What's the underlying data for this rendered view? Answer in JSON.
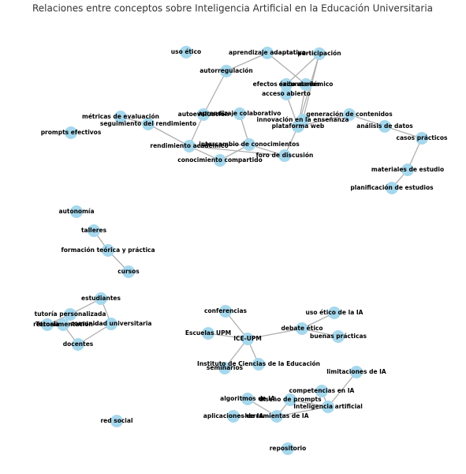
{
  "title": "Relaciones entre conceptos sobre Inteligencia Artificial en la Educación Universitaria",
  "nodes": [
    {
      "label": "uso ético"
    },
    {
      "label": "aprendizaje adaptativo"
    },
    {
      "label": "participación"
    },
    {
      "label": "autorregulación"
    },
    {
      "label": "efectos secundarios"
    },
    {
      "label": "éxito académico"
    },
    {
      "label": "acceso abierto"
    },
    {
      "label": "autoevaluación"
    },
    {
      "label": "aprendizaje colaborativo"
    },
    {
      "label": "innovación en la enseñanza"
    },
    {
      "label": "plataforma web"
    },
    {
      "label": "generación de contenidos"
    },
    {
      "label": "análisis de datos"
    },
    {
      "label": "casos prácticos"
    },
    {
      "label": "métricas de evaluación"
    },
    {
      "label": "seguimiento del rendimiento"
    },
    {
      "label": "prompts efectivos"
    },
    {
      "label": "rendimiento académico"
    },
    {
      "label": "intercambio de conocimientos"
    },
    {
      "label": "foro de discusión"
    },
    {
      "label": "conocimiento compartido"
    },
    {
      "label": "materiales de estudio"
    },
    {
      "label": "planificación de estudios"
    },
    {
      "label": "autonomía"
    },
    {
      "label": "talleres"
    },
    {
      "label": "formación teórica y práctica"
    },
    {
      "label": "cursos"
    },
    {
      "label": "estudiantes"
    },
    {
      "label": "tutoría personalizada"
    },
    {
      "label": "comunidad universitaria"
    },
    {
      "label": "retroalimentación"
    },
    {
      "label": "Tutoría"
    },
    {
      "label": "docentes"
    },
    {
      "label": "conferencias"
    },
    {
      "label": "uso ético de la IA"
    },
    {
      "label": "Escuelas UPM"
    },
    {
      "label": "ICE-UPM"
    },
    {
      "label": "debate ético"
    },
    {
      "label": "buenas prácticas"
    },
    {
      "label": "Instituto de Ciencias de la Educación"
    },
    {
      "label": "seminarios"
    },
    {
      "label": "limitaciones de IA"
    },
    {
      "label": "competencias en IA"
    },
    {
      "label": "algoritmos de IA"
    },
    {
      "label": "diseño de prompts"
    },
    {
      "label": "Inteligencia artificial"
    },
    {
      "label": "aplicaciones de IA"
    },
    {
      "label": "herramientas de IA"
    },
    {
      "label": "red social"
    },
    {
      "label": "repositorio"
    }
  ],
  "edges": [
    {
      "from": "aprendizaje adaptativo",
      "to": "autorregulación"
    },
    {
      "from": "aprendizaje adaptativo",
      "to": "participación"
    },
    {
      "from": "aprendizaje adaptativo",
      "to": "éxito académico"
    },
    {
      "from": "participación",
      "to": "efectos secundarios"
    },
    {
      "from": "participación",
      "to": "innovación en la enseñanza"
    },
    {
      "from": "participación",
      "to": "plataforma web"
    },
    {
      "from": "efectos secundarios",
      "to": "acceso abierto"
    },
    {
      "from": "acceso abierto",
      "to": "plataforma web"
    },
    {
      "from": "éxito académico",
      "to": "plataforma web"
    },
    {
      "from": "autorregulación",
      "to": "autoevaluación"
    },
    {
      "from": "autoevaluación",
      "to": "rendimiento académico"
    },
    {
      "from": "autoevaluación",
      "to": "aprendizaje colaborativo"
    },
    {
      "from": "aprendizaje colaborativo",
      "to": "intercambio de conocimientos"
    },
    {
      "from": "intercambio de conocimientos",
      "to": "rendimiento académico"
    },
    {
      "from": "intercambio de conocimientos",
      "to": "foro de discusión"
    },
    {
      "from": "conocimiento compartido",
      "to": "rendimiento académico"
    },
    {
      "from": "conocimiento compartido",
      "to": "intercambio de conocimientos"
    },
    {
      "from": "rendimiento académico",
      "to": "seguimiento del rendimiento"
    },
    {
      "from": "seguimiento del rendimiento",
      "to": "métricas de evaluación"
    },
    {
      "from": "rendimiento académico",
      "to": "foro de discusión"
    },
    {
      "from": "foro de discusión",
      "to": "plataforma web"
    },
    {
      "from": "plataforma web",
      "to": "generación de contenidos"
    },
    {
      "from": "generación de contenidos",
      "to": "análisis de datos"
    },
    {
      "from": "análisis de datos",
      "to": "casos prácticos"
    },
    {
      "from": "casos prácticos",
      "to": "materiales de estudio"
    },
    {
      "from": "materiales de estudio",
      "to": "planificación de estudios"
    },
    {
      "from": "talleres",
      "to": "formación teórica y práctica"
    },
    {
      "from": "formación teórica y práctica",
      "to": "cursos"
    },
    {
      "from": "estudiantes",
      "to": "tutoría personalizada"
    },
    {
      "from": "estudiantes",
      "to": "comunidad universitaria"
    },
    {
      "from": "tutoría personalizada",
      "to": "retroalimentación"
    },
    {
      "from": "tutoría personalizada",
      "to": "Tutoría"
    },
    {
      "from": "comunidad universitaria",
      "to": "retroalimentación"
    },
    {
      "from": "retroalimentación",
      "to": "docentes"
    },
    {
      "from": "comunidad universitaria",
      "to": "docentes"
    },
    {
      "from": "ICE-UPM",
      "to": "conferencias"
    },
    {
      "from": "ICE-UPM",
      "to": "Escuelas UPM"
    },
    {
      "from": "ICE-UPM",
      "to": "debate ético"
    },
    {
      "from": "ICE-UPM",
      "to": "Instituto de Ciencias de la Educación"
    },
    {
      "from": "ICE-UPM",
      "to": "seminarios"
    },
    {
      "from": "debate ético",
      "to": "uso ético de la IA"
    },
    {
      "from": "debate ético",
      "to": "buenas prácticas"
    },
    {
      "from": "Inteligencia artificial",
      "to": "limitaciones de IA"
    },
    {
      "from": "Inteligencia artificial",
      "to": "competencias en IA"
    },
    {
      "from": "Inteligencia artificial",
      "to": "diseño de prompts"
    },
    {
      "from": "Inteligencia artificial",
      "to": "herramientas de IA"
    },
    {
      "from": "herramientas de IA",
      "to": "algoritmos de IA"
    },
    {
      "from": "herramientas de IA",
      "to": "aplicaciones de IA"
    },
    {
      "from": "diseño de prompts",
      "to": "herramientas de IA"
    }
  ]
}
